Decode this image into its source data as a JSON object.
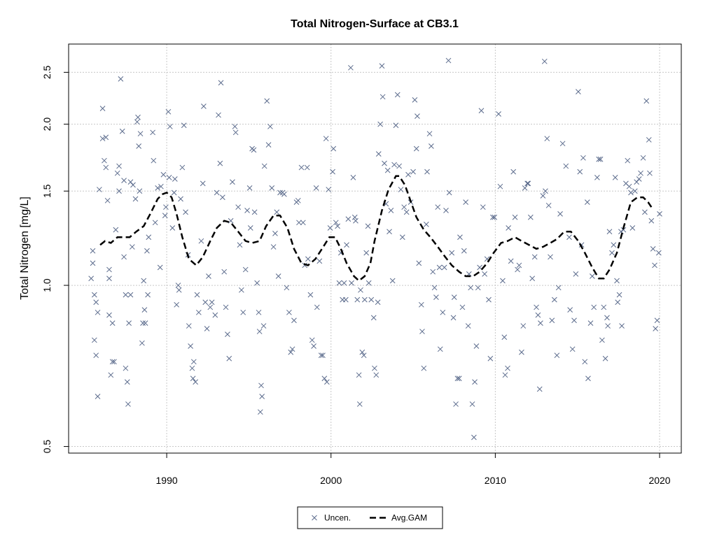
{
  "chart_data": {
    "type": "scatter",
    "title": "Total Nitrogen-Surface at CB3.1",
    "y_label": "Total Nitrogen [mg/L]",
    "log_y": true,
    "grid": true,
    "legend": "bottom",
    "xlim": [
      1984.03,
      2021.32
    ],
    "ylim": [
      0.486,
      2.823
    ],
    "xticks": [
      1990,
      2000,
      2010,
      2020
    ],
    "yticks": [
      0.5,
      {
        "value": 1.0,
        "label": "1.0"
      },
      1.5,
      {
        "value": 2.0,
        "label": "2.0"
      },
      2.5
    ],
    "series": [
      {
        "name": "Uncen.",
        "type": "scatter",
        "color": "#5b6b8c",
        "x": [
          1985.4,
          1985.5,
          1985.5,
          1985.6,
          1985.6,
          1985.7,
          1985.7,
          1985.8,
          1985.8,
          1985.9,
          1986.1,
          1986.1,
          1986.2,
          1986.3,
          1986.3,
          1986.4,
          1986.5,
          1986.5,
          1986.5,
          1986.6,
          1986.7,
          1986.7,
          1986.8,
          1986.9,
          1987.0,
          1987.1,
          1987.1,
          1987.2,
          1987.3,
          1987.4,
          1987.4,
          1987.5,
          1987.5,
          1987.6,
          1987.65,
          1987.7,
          1987.8,
          1987.8,
          1987.9,
          1987.95,
          1988.1,
          1988.2,
          1988.25,
          1988.3,
          1988.35,
          1988.4,
          1988.5,
          1988.55,
          1988.6,
          1988.65,
          1988.7,
          1988.8,
          1988.85,
          1988.9,
          1989.15,
          1989.2,
          1989.3,
          1989.45,
          1989.6,
          1989.65,
          1989.8,
          1989.9,
          1989.95,
          1990.1,
          1990.15,
          1990.2,
          1990.35,
          1990.45,
          1990.5,
          1990.6,
          1990.7,
          1990.75,
          1990.85,
          1990.95,
          1991.05,
          1991.15,
          1991.3,
          1991.35,
          1991.45,
          1991.55,
          1991.6,
          1991.65,
          1991.75,
          1991.85,
          1991.95,
          1992.1,
          1992.2,
          1992.25,
          1992.35,
          1992.45,
          1992.55,
          1992.65,
          1992.75,
          1992.95,
          1993.05,
          1993.15,
          1993.25,
          1993.3,
          1993.4,
          1993.5,
          1993.6,
          1993.7,
          1993.8,
          1993.9,
          1994.0,
          1994.15,
          1994.2,
          1994.35,
          1994.45,
          1994.55,
          1994.65,
          1994.8,
          1994.9,
          1995.05,
          1995.1,
          1995.2,
          1995.3,
          1995.35,
          1995.5,
          1995.6,
          1995.65,
          1995.75,
          1995.8,
          1995.7,
          1995.9,
          1995.95,
          1996.1,
          1996.2,
          1996.3,
          1996.4,
          1996.5,
          1996.6,
          1996.7,
          1996.8,
          1996.9,
          1997.05,
          1997.15,
          1997.3,
          1997.45,
          1997.55,
          1997.65,
          1997.75,
          1997.9,
          1998.0,
          1998.05,
          1998.2,
          1998.3,
          1998.4,
          1998.55,
          1998.6,
          1998.75,
          1998.85,
          1998.95,
          1999.1,
          1999.15,
          1999.3,
          1999.4,
          1999.5,
          1999.6,
          1999.7,
          1999.75,
          1999.85,
          1999.95,
          2000.1,
          2000.15,
          2000.3,
          2000.4,
          2000.5,
          2000.6,
          2000.7,
          2000.8,
          2000.9,
          2000.95,
          2001.05,
          2001.2,
          2001.25,
          2001.35,
          2001.45,
          2001.5,
          2001.6,
          2001.7,
          2001.75,
          2001.8,
          2001.9,
          2002.0,
          2002.05,
          2002.15,
          2002.25,
          2002.3,
          2002.45,
          2002.6,
          2002.65,
          2002.75,
          2002.85,
          2002.9,
          2003.0,
          2003.1,
          2003.15,
          2003.25,
          2003.35,
          2003.45,
          2003.55,
          2003.65,
          2003.75,
          2003.85,
          2003.95,
          2004.05,
          2004.15,
          2004.25,
          2004.35,
          2004.45,
          2004.6,
          2004.7,
          2004.85,
          2005.0,
          2005.1,
          2005.2,
          2005.25,
          2005.35,
          2005.5,
          2005.55,
          2005.65,
          2005.8,
          2005.85,
          2006.0,
          2006.1,
          2006.2,
          2006.3,
          2006.4,
          2006.5,
          2006.6,
          2006.65,
          2006.8,
          2006.9,
          2007.0,
          2007.15,
          2007.2,
          2007.35,
          2007.45,
          2007.5,
          2007.6,
          2007.7,
          2007.8,
          2007.85,
          2008.0,
          2008.1,
          2008.2,
          2008.35,
          2008.4,
          2008.5,
          2008.6,
          2008.7,
          2008.75,
          2008.85,
          2008.95,
          2009.05,
          2009.15,
          2009.25,
          2009.35,
          2009.5,
          2009.6,
          2009.7,
          2009.85,
          2009.95,
          2010.2,
          2010.3,
          2010.45,
          2010.55,
          2010.6,
          2010.75,
          2010.8,
          2010.95,
          2011.1,
          2011.2,
          2011.35,
          2011.45,
          2011.6,
          2011.7,
          2011.8,
          2011.95,
          2012.0,
          2012.15,
          2012.25,
          2012.4,
          2012.5,
          2012.6,
          2012.7,
          2012.75,
          2012.9,
          2013.0,
          2013.05,
          2013.15,
          2013.25,
          2013.35,
          2013.45,
          2013.6,
          2013.75,
          2013.85,
          2013.95,
          2014.1,
          2014.3,
          2014.5,
          2014.55,
          2014.7,
          2014.8,
          2014.9,
          2015.05,
          2015.15,
          2015.25,
          2015.35,
          2015.45,
          2015.6,
          2015.65,
          2015.8,
          2015.9,
          2016.0,
          2016.2,
          2016.3,
          2016.4,
          2016.5,
          2016.6,
          2016.7,
          2016.8,
          2016.85,
          2016.95,
          2017.1,
          2017.2,
          2017.3,
          2017.4,
          2017.45,
          2017.55,
          2017.65,
          2017.7,
          2017.8,
          2017.95,
          2018.05,
          2018.15,
          2018.25,
          2018.35,
          2018.5,
          2018.6,
          2018.75,
          2018.85,
          2019.0,
          2019.1,
          2019.2,
          2019.35,
          2019.4,
          2019.5,
          2019.6,
          2019.7,
          2019.75,
          2019.85,
          2019.95,
          2020.0
        ],
        "values": [
          1.03,
          1.1,
          1.16,
          0.96,
          0.79,
          0.74,
          0.93,
          0.62,
          0.89,
          1.51,
          1.88,
          2.14,
          1.71,
          1.66,
          1.89,
          1.44,
          1.03,
          1.07,
          0.88,
          0.68,
          0.72,
          0.85,
          0.72,
          1.27,
          1.62,
          1.5,
          1.67,
          2.43,
          1.94,
          1.57,
          1.13,
          0.96,
          0.7,
          0.66,
          0.6,
          0.85,
          1.56,
          0.96,
          1.18,
          1.54,
          1.45,
          2.02,
          2.06,
          1.82,
          1.5,
          1.92,
          0.78,
          0.85,
          1.02,
          0.9,
          0.85,
          1.16,
          0.96,
          1.23,
          1.93,
          1.71,
          1.31,
          1.52,
          1.08,
          1.53,
          1.61,
          1.35,
          1.4,
          2.11,
          1.59,
          1.98,
          1.28,
          1.49,
          1.58,
          0.92,
          1.0,
          0.98,
          1.45,
          1.66,
          1.99,
          1.37,
          1.14,
          0.84,
          0.77,
          0.7,
          0.67,
          0.72,
          0.66,
          0.96,
          0.89,
          1.21,
          1.55,
          2.16,
          0.93,
          0.83,
          1.04,
          0.91,
          0.93,
          0.88,
          1.49,
          2.08,
          1.69,
          2.39,
          1.46,
          1.06,
          0.91,
          0.81,
          0.73,
          1.32,
          1.56,
          1.98,
          1.93,
          1.4,
          1.19,
          0.98,
          0.89,
          1.07,
          1.38,
          1.52,
          1.28,
          1.8,
          1.79,
          1.37,
          1.01,
          0.89,
          0.82,
          0.65,
          0.62,
          0.58,
          0.84,
          1.67,
          2.21,
          1.83,
          1.98,
          1.52,
          1.18,
          1.25,
          1.37,
          1.04,
          1.49,
          1.49,
          1.48,
          0.99,
          0.89,
          0.75,
          0.76,
          0.86,
          1.43,
          1.44,
          1.31,
          1.66,
          1.31,
          1.09,
          1.66,
          1.12,
          0.96,
          0.79,
          0.77,
          1.52,
          0.91,
          1.11,
          0.74,
          0.74,
          0.67,
          1.88,
          0.66,
          1.51,
          1.28,
          1.63,
          1.8,
          1.31,
          1.29,
          1.01,
          1.15,
          0.94,
          1.01,
          0.94,
          1.19,
          1.33,
          2.55,
          1.01,
          1.59,
          1.34,
          1.32,
          0.94,
          0.68,
          0.6,
          0.98,
          0.75,
          0.74,
          0.94,
          1.15,
          1.29,
          1.01,
          0.94,
          0.87,
          0.7,
          0.68,
          0.93,
          1.76,
          2.0,
          2.57,
          2.25,
          1.69,
          1.42,
          1.64,
          1.26,
          1.38,
          1.02,
          1.68,
          1.99,
          2.27,
          1.67,
          1.51,
          1.23,
          1.4,
          1.37,
          1.61,
          1.43,
          1.63,
          2.22,
          1.8,
          2.07,
          1.1,
          0.92,
          0.82,
          0.7,
          1.3,
          1.63,
          1.92,
          1.82,
          1.06,
          0.99,
          0.95,
          1.4,
          1.08,
          0.76,
          0.89,
          1.08,
          1.38,
          2.63,
          1.49,
          1.15,
          0.87,
          0.95,
          0.6,
          0.67,
          0.67,
          1.23,
          0.91,
          1.16,
          1.43,
          0.84,
          1.05,
          0.99,
          0.6,
          0.52,
          0.66,
          0.77,
          0.99,
          1.08,
          2.12,
          1.4,
          1.05,
          1.12,
          0.94,
          0.73,
          1.34,
          1.34,
          2.09,
          1.53,
          1.02,
          0.8,
          0.68,
          0.7,
          1.28,
          1.11,
          1.63,
          1.34,
          1.07,
          1.09,
          0.75,
          0.84,
          1.52,
          1.55,
          1.55,
          1.34,
          1.03,
          1.13,
          0.91,
          0.88,
          0.64,
          0.85,
          1.47,
          2.62,
          1.5,
          1.88,
          1.41,
          1.13,
          0.86,
          0.94,
          0.74,
          0.99,
          1.36,
          1.84,
          1.67,
          1.23,
          0.9,
          0.76,
          0.86,
          1.05,
          2.3,
          1.63,
          1.19,
          1.73,
          0.72,
          1.43,
          0.67,
          0.85,
          1.04,
          0.91,
          1.59,
          1.72,
          1.72,
          0.79,
          0.91,
          0.73,
          0.87,
          0.84,
          1.26,
          1.15,
          1.19,
          1.59,
          1.02,
          0.93,
          0.96,
          1.26,
          0.84,
          1.27,
          1.55,
          1.71,
          1.53,
          1.49,
          1.28,
          1.5,
          1.56,
          1.58,
          1.62,
          1.73,
          1.37,
          2.21,
          1.87,
          1.62,
          1.32,
          1.17,
          1.09,
          0.83,
          0.86,
          1.15,
          1.36
        ]
      },
      {
        "name": "Avg.GAM",
        "type": "line",
        "color": "#000000",
        "dashed": true,
        "x": [
          1985.95,
          1986.25,
          1986.6,
          1987.0,
          1987.3,
          1987.75,
          1988.15,
          1988.6,
          1989.0,
          1989.45,
          1989.75,
          1990.0,
          1990.3,
          1990.6,
          1990.95,
          1991.35,
          1991.8,
          1992.2,
          1992.65,
          1993.05,
          1993.5,
          1993.9,
          1994.35,
          1994.8,
          1995.2,
          1995.65,
          1996.05,
          1996.5,
          1996.9,
          1997.35,
          1997.75,
          1998.2,
          1998.6,
          1999.05,
          1999.45,
          1999.9,
          2000.25,
          2000.6,
          2000.95,
          2001.4,
          2001.7,
          2002.05,
          2002.4,
          2002.65,
          2003.1,
          2003.5,
          2003.95,
          2004.15,
          2004.5,
          2004.8,
          2005.2,
          2005.65,
          2006.05,
          2006.5,
          2006.95,
          2007.35,
          2007.8,
          2008.2,
          2008.65,
          2009.05,
          2009.5,
          2009.9,
          2010.35,
          2010.75,
          2011.2,
          2011.6,
          2012.05,
          2012.5,
          2012.9,
          2013.35,
          2013.75,
          2014.2,
          2014.6,
          2015.05,
          2015.45,
          2015.9,
          2016.3,
          2016.6,
          2016.95,
          2017.4,
          2017.8,
          2018.25,
          2018.65,
          2019.0,
          2019.3,
          2019.5
        ],
        "values": [
          1.19,
          1.21,
          1.2,
          1.23,
          1.23,
          1.23,
          1.26,
          1.29,
          1.36,
          1.45,
          1.48,
          1.49,
          1.46,
          1.36,
          1.23,
          1.12,
          1.09,
          1.13,
          1.21,
          1.28,
          1.32,
          1.31,
          1.26,
          1.21,
          1.2,
          1.21,
          1.29,
          1.35,
          1.35,
          1.28,
          1.17,
          1.1,
          1.09,
          1.12,
          1.17,
          1.23,
          1.23,
          1.17,
          1.1,
          1.04,
          1.02,
          1.04,
          1.1,
          1.21,
          1.38,
          1.51,
          1.6,
          1.6,
          1.54,
          1.45,
          1.34,
          1.27,
          1.23,
          1.18,
          1.13,
          1.09,
          1.06,
          1.04,
          1.04,
          1.06,
          1.1,
          1.15,
          1.2,
          1.21,
          1.23,
          1.21,
          1.19,
          1.17,
          1.18,
          1.2,
          1.22,
          1.26,
          1.26,
          1.21,
          1.15,
          1.08,
          1.03,
          1.03,
          1.07,
          1.15,
          1.28,
          1.43,
          1.46,
          1.46,
          1.43,
          1.4
        ]
      }
    ]
  }
}
